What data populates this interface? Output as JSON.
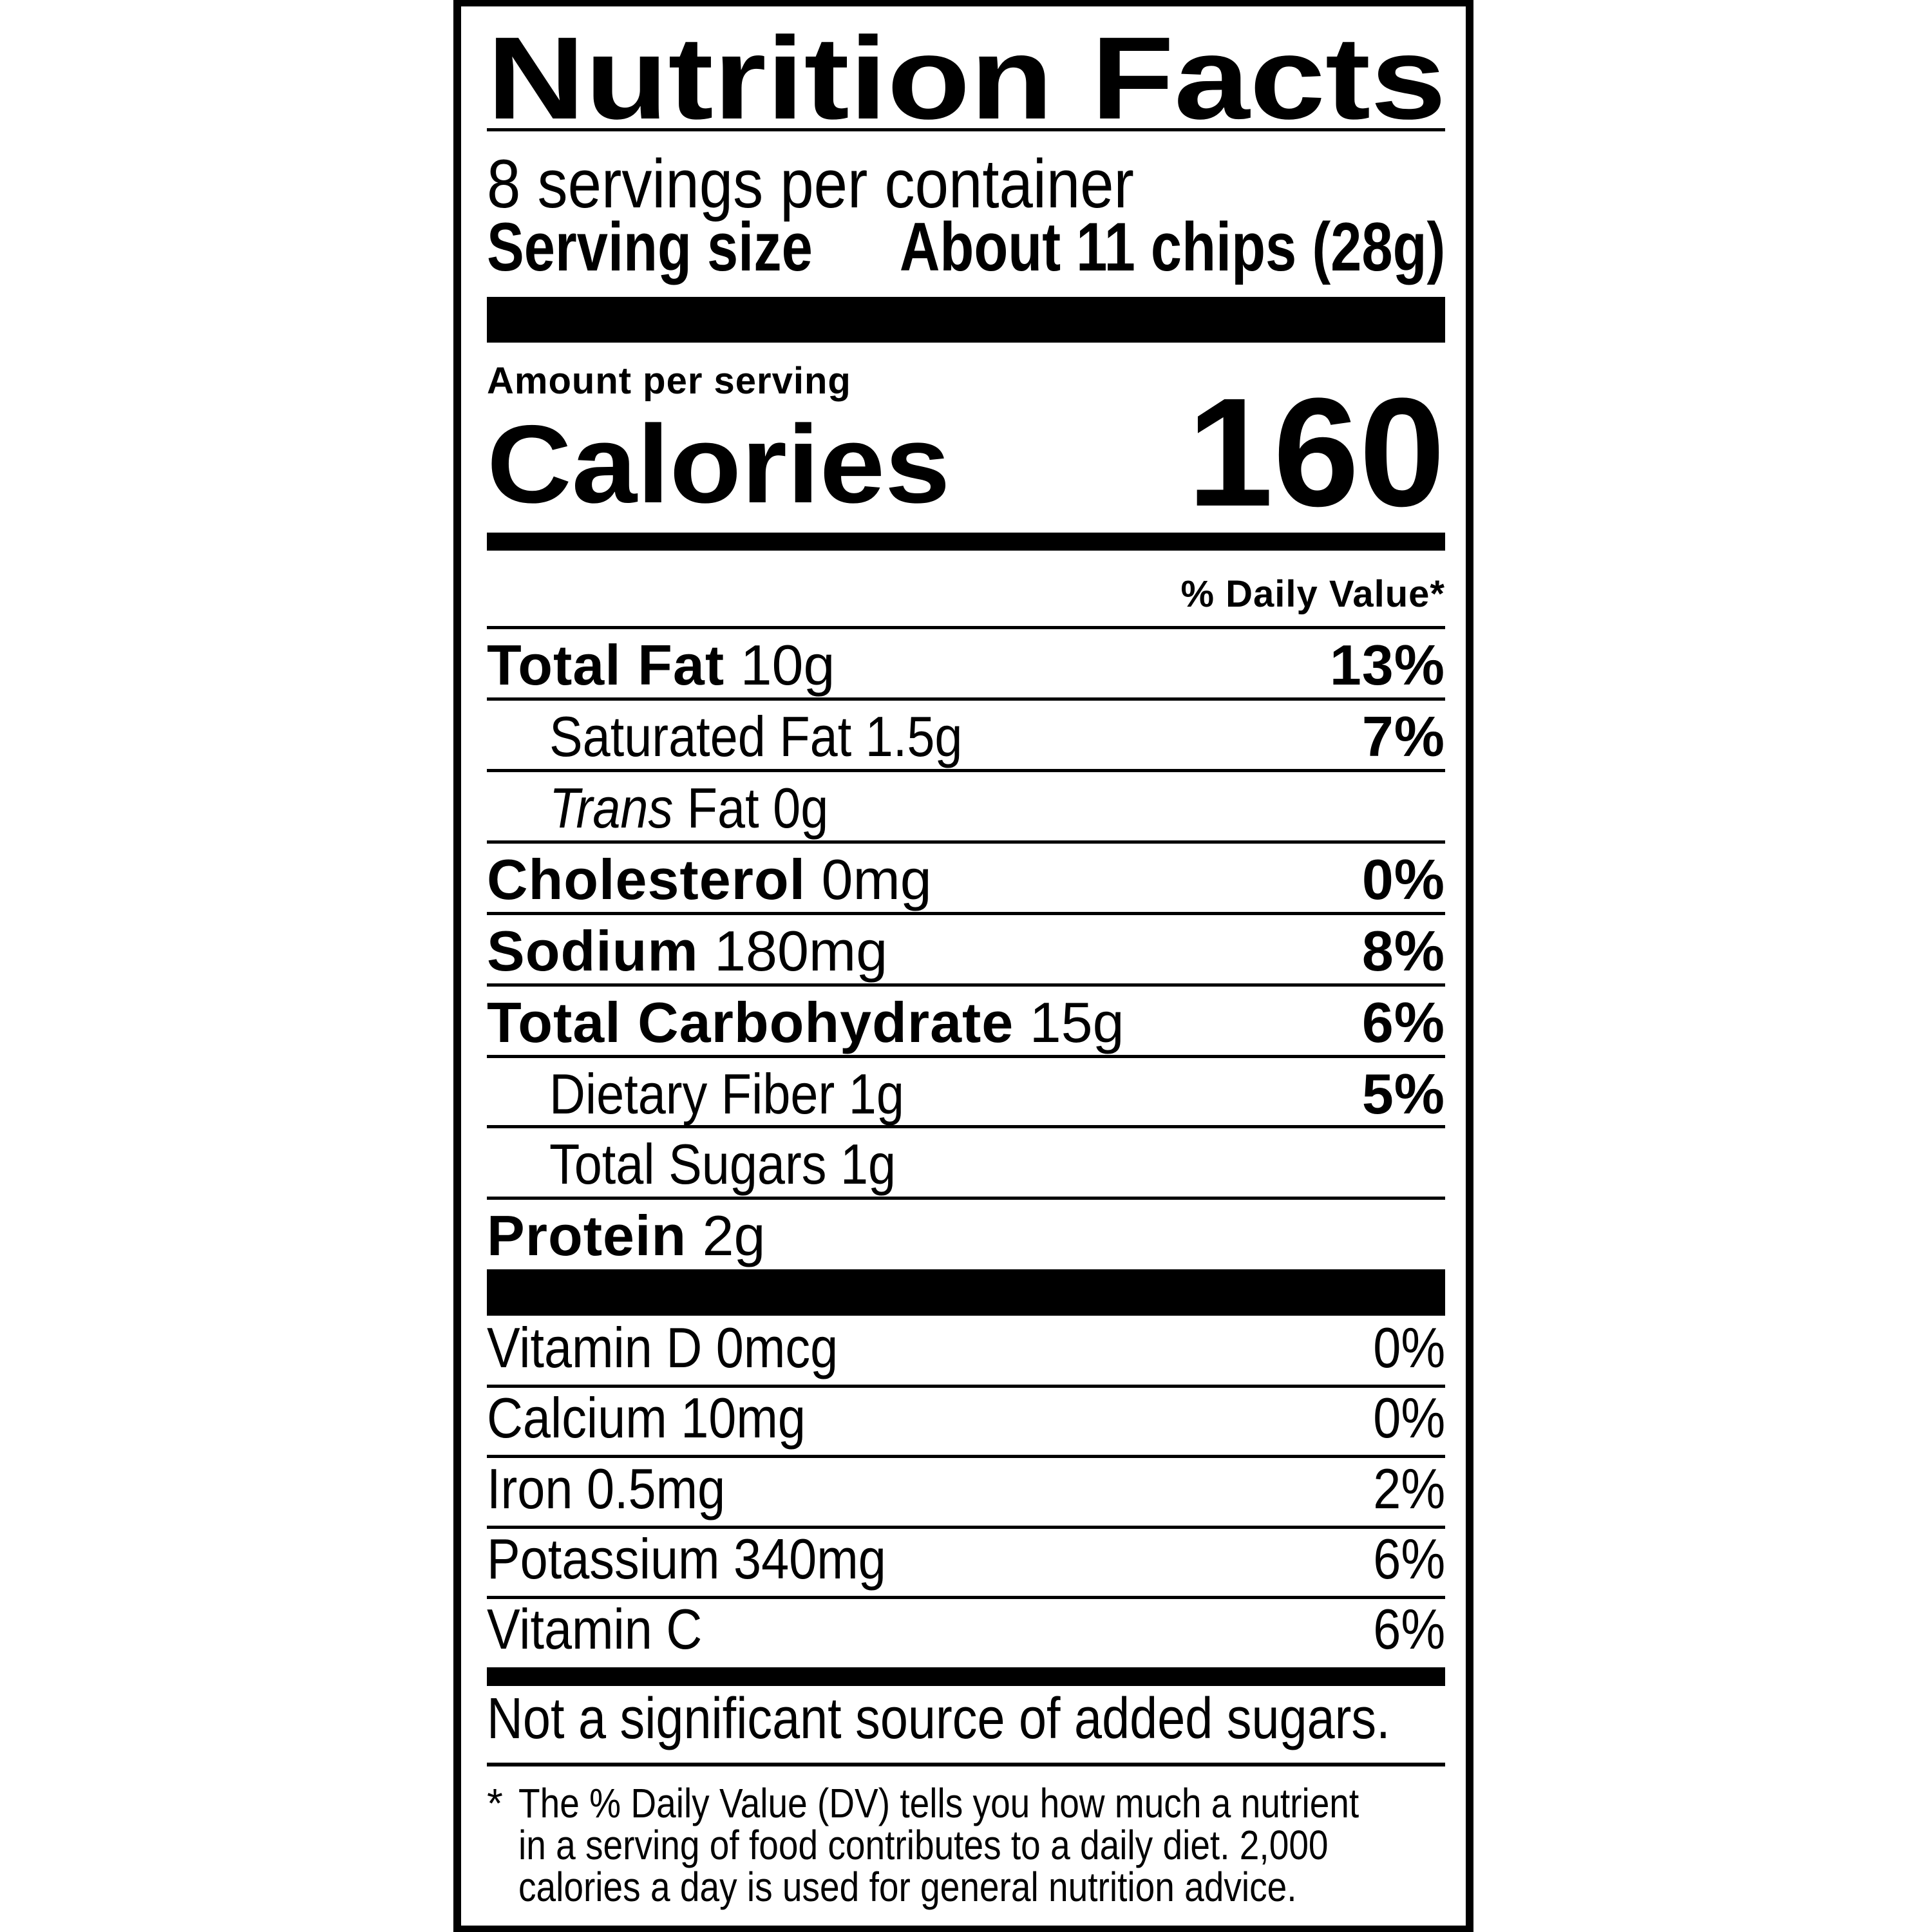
{
  "label": {
    "title": "Nutrition Facts",
    "servings_per_container": "8 servings per container",
    "serving_size_label": "Serving size",
    "serving_size_value": "About 11 chips (28g)",
    "amount_per_serving": "Amount per serving",
    "calories_label": "Calories",
    "calories_value": "160",
    "daily_value_header": "% Daily Value*",
    "nutrients": [
      {
        "name": "Total Fat",
        "amount": "10g",
        "dv": "13%"
      },
      {
        "name": "Saturated Fat",
        "amount": "1.5g",
        "dv": "7%"
      },
      {
        "name_italic": "Trans",
        "name": "Fat",
        "amount": "0g",
        "dv": ""
      },
      {
        "name": "Cholesterol",
        "amount": "0mg",
        "dv": "0%"
      },
      {
        "name": "Sodium",
        "amount": "180mg",
        "dv": "8%"
      },
      {
        "name": "Total Carbohydrate",
        "amount": "15g",
        "dv": "6%"
      },
      {
        "name": "Dietary Fiber",
        "amount": "1g",
        "dv": "5%"
      },
      {
        "name": "Total Sugars",
        "amount": "1g",
        "dv": ""
      },
      {
        "name": "Protein",
        "amount": "2g",
        "dv": ""
      }
    ],
    "vitamins": [
      {
        "text": "Vitamin D 0mcg",
        "dv": "0%"
      },
      {
        "text": "Calcium 10mg",
        "dv": "0%"
      },
      {
        "text": "Iron 0.5mg",
        "dv": "2%"
      },
      {
        "text": "Potassium 340mg",
        "dv": "6%"
      },
      {
        "text": "Vitamin C",
        "dv": "6%"
      }
    ],
    "added_sugars_note": "Not a significant source of added sugars.",
    "footnote_asterisk": "*",
    "footnote_lines": [
      "The % Daily Value (DV) tells you how much a nutrient",
      "in a serving of food contributes to a daily diet. 2,000",
      "calories a day is used for general nutrition advice."
    ]
  }
}
